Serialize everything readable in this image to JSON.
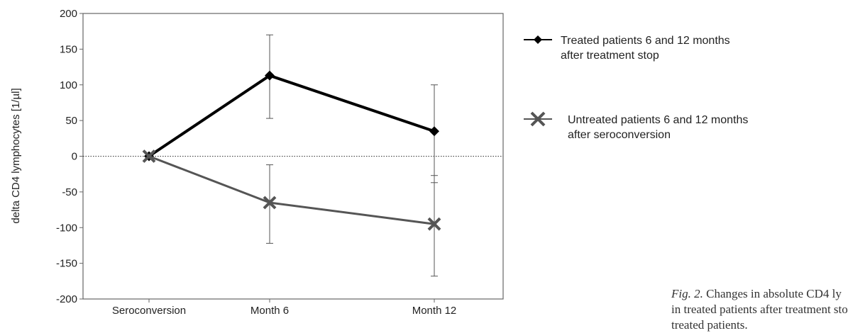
{
  "chart_data": {
    "type": "line",
    "categories": [
      "Seroconversion",
      "Month 6",
      "Month 12"
    ],
    "ylabel": "delta CD4 lymphocytes [1/µl]",
    "ylim": [
      -200,
      200
    ],
    "yticks": [
      200,
      150,
      100,
      50,
      0,
      -50,
      -100,
      -150,
      -200
    ],
    "reference_line": 0,
    "series": [
      {
        "name": "Treated patients 6 and 12 months after treatment stop",
        "legend_lines": [
          "Treated patients 6 and 12 months",
          "after treatment stop"
        ],
        "marker": "diamond",
        "color": "#000000",
        "values": [
          0,
          113,
          35
        ],
        "error_upper": [
          0,
          170,
          100
        ],
        "error_lower": [
          0,
          53,
          -37
        ]
      },
      {
        "name": "Untreated patients 6 and 12 months after seroconversion",
        "legend_lines": [
          "Untreated patients 6 and 12 months",
          "after seroconversion"
        ],
        "marker": "x",
        "color": "#555555",
        "values": [
          0,
          -65,
          -95
        ],
        "error_upper": [
          0,
          -12,
          -27
        ],
        "error_lower": [
          0,
          -122,
          -168
        ]
      }
    ]
  },
  "caption": {
    "label": "Fig. 2.",
    "lines": [
      " Changes in absolute CD4 ly",
      "in treated patients after treatment sto",
      "treated patients."
    ]
  }
}
